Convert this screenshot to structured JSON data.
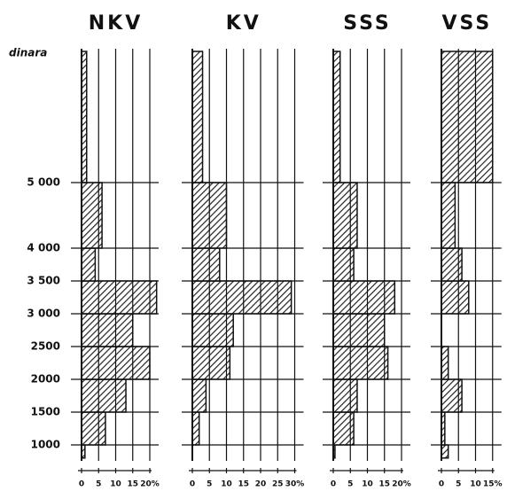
{
  "chart_data": [
    {
      "type": "histogram",
      "title": "NKV",
      "y_label": "dinara",
      "color": "#222",
      "bins": [
        800,
        1000,
        1500,
        2000,
        2500,
        3000,
        3500,
        4000,
        5000,
        7000
      ],
      "values": [
        1,
        7,
        13,
        20,
        15,
        22,
        4,
        6,
        1.5
      ],
      "ylim": [
        600,
        7100
      ],
      "yticks": [
        {
          "value": 1000,
          "label": "1000"
        },
        {
          "value": 1500,
          "label": "1500"
        },
        {
          "value": 2000,
          "label": "2000"
        },
        {
          "value": 2500,
          "label": "2500"
        },
        {
          "value": 3000,
          "label": "3 000"
        },
        {
          "value": 3500,
          "label": "3 500"
        },
        {
          "value": 4000,
          "label": "4 000"
        },
        {
          "value": 5000,
          "label": "5 000"
        }
      ],
      "xlim": [
        0,
        20
      ],
      "xticks": [
        0,
        5,
        10,
        15,
        {
          "value": 20,
          "label": "20%"
        }
      ]
    },
    {
      "type": "histogram",
      "title": "KV",
      "color": "#222",
      "bins": [
        800,
        1000,
        1500,
        2000,
        2500,
        3000,
        3500,
        4000,
        5000,
        7000
      ],
      "values": [
        0,
        2,
        4,
        11,
        12,
        29,
        8,
        10,
        3
      ],
      "ylim": [
        600,
        7100
      ],
      "xlim": [
        0,
        30
      ],
      "xticks": [
        0,
        5,
        10,
        15,
        20,
        25,
        {
          "value": 30,
          "label": "30%"
        }
      ]
    },
    {
      "type": "histogram",
      "title": "SSS",
      "color": "#222",
      "bins": [
        800,
        1000,
        1500,
        2000,
        2500,
        3000,
        3500,
        4000,
        5000,
        7000
      ],
      "values": [
        0.5,
        6,
        7,
        16,
        15,
        18,
        6,
        7,
        2
      ],
      "ylim": [
        600,
        7100
      ],
      "xlim": [
        0,
        20
      ],
      "xticks": [
        0,
        5,
        10,
        15,
        {
          "value": 20,
          "label": "20%"
        }
      ]
    },
    {
      "type": "histogram",
      "title": "VSS",
      "color": "#222",
      "bins": [
        800,
        1000,
        1500,
        2000,
        2500,
        3000,
        3500,
        4000,
        5000,
        7000
      ],
      "values": [
        2,
        1,
        6,
        2,
        0,
        8,
        6,
        4,
        15
      ],
      "ylim": [
        600,
        7100
      ],
      "xlim": [
        0,
        15
      ],
      "xticks": [
        0,
        5,
        10,
        {
          "value": 15,
          "label": "15%"
        }
      ]
    }
  ]
}
